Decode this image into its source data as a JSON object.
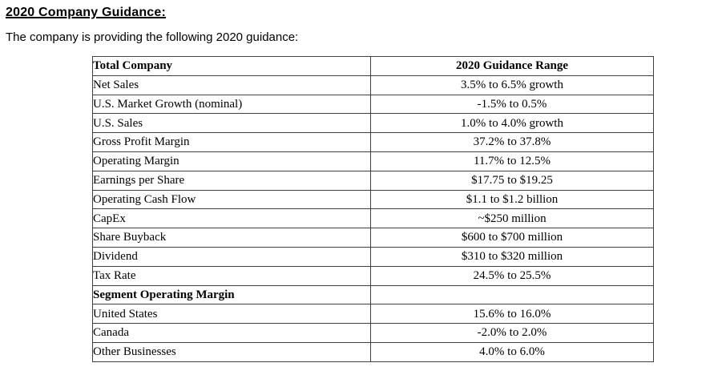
{
  "page": {
    "heading": "2020 Company Guidance:",
    "intro": "The company is providing the following 2020 guidance:"
  },
  "table": {
    "columns": [
      "Total Company",
      "2020 Guidance Range"
    ],
    "rows": [
      {
        "label": "Net Sales",
        "value": "3.5% to 6.5% growth",
        "indent": false,
        "bold": false
      },
      {
        "label": "U.S. Market Growth (nominal)",
        "value": "-1.5% to 0.5%",
        "indent": true,
        "bold": false
      },
      {
        "label": "U.S. Sales",
        "value": "1.0% to 4.0% growth",
        "indent": true,
        "bold": false
      },
      {
        "label": "Gross Profit Margin",
        "value": "37.2% to 37.8%",
        "indent": false,
        "bold": false
      },
      {
        "label": "Operating Margin",
        "value": "11.7% to 12.5%",
        "indent": false,
        "bold": false
      },
      {
        "label": "Earnings per Share",
        "value": "$17.75 to $19.25",
        "indent": false,
        "bold": false
      },
      {
        "label": "Operating Cash Flow",
        "value": "$1.1 to $1.2 billion",
        "indent": false,
        "bold": false
      },
      {
        "label": "CapEx",
        "value": "~$250 million",
        "indent": false,
        "bold": false
      },
      {
        "label": "Share Buyback",
        "value": "$600 to $700 million",
        "indent": false,
        "bold": false
      },
      {
        "label": "Dividend",
        "value": "$310 to $320 million",
        "indent": false,
        "bold": false
      },
      {
        "label": "Tax Rate",
        "value": "24.5% to 25.5%",
        "indent": false,
        "bold": false
      },
      {
        "label": "Segment Operating Margin",
        "value": "",
        "indent": false,
        "bold": true
      },
      {
        "label": "United States",
        "value": "15.6% to 16.0%",
        "indent": false,
        "bold": false
      },
      {
        "label": "Canada",
        "value": "-2.0% to 2.0%",
        "indent": false,
        "bold": false
      },
      {
        "label": "Other Businesses",
        "value": "4.0% to 6.0%",
        "indent": false,
        "bold": false
      }
    ]
  },
  "colors": {
    "text": "#000000",
    "border": "#404040",
    "background": "#ffffff"
  }
}
